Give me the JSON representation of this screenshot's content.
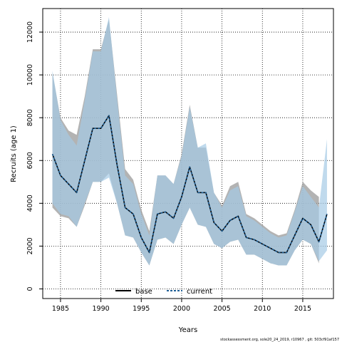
{
  "chart_data": {
    "type": "line",
    "xlabel": "Years",
    "ylabel": "Recruits (age 1)",
    "xlim": [
      1982.8,
      2018.8
    ],
    "ylim": [
      -450,
      13100
    ],
    "x_ticks": [
      1985,
      1990,
      1995,
      2000,
      2005,
      2010,
      2015
    ],
    "x_tick_labels": [
      "1985",
      "1990",
      "1995",
      "2000",
      "2005",
      "2010",
      "2015"
    ],
    "y_ticks": [
      0,
      2000,
      4000,
      6000,
      8000,
      10000,
      12000
    ],
    "y_tick_labels": [
      "0",
      "2000",
      "4000",
      "6000",
      "8000",
      "10000",
      "12000"
    ],
    "grid": true,
    "legend_position": "bottom-center",
    "years": [
      1984,
      1985,
      1986,
      1987,
      1988,
      1989,
      1990,
      1991,
      1992,
      1993,
      1994,
      1995,
      1996,
      1997,
      1998,
      1999,
      2000,
      2001,
      2002,
      2003,
      2004,
      2005,
      2006,
      2007,
      2008,
      2009,
      2010,
      2011,
      2012,
      2013,
      2014,
      2015,
      2016,
      2017,
      2018
    ],
    "series": [
      {
        "name": "base",
        "line_color": "#000000",
        "band_color": "#999999",
        "values": [
          6300,
          5300,
          4900,
          4500,
          6000,
          7500,
          7500,
          8100,
          5800,
          3800,
          3500,
          2400,
          1700,
          3500,
          3600,
          3300,
          4300,
          5700,
          4500,
          4500,
          3100,
          2700,
          3200,
          3400,
          2400,
          2300,
          2100,
          1900,
          1700,
          1700,
          2500,
          3300,
          3000,
          2200,
          3500
        ],
        "lower": [
          3800,
          3400,
          3300,
          2900,
          3900,
          5000,
          5000,
          5400,
          4000,
          2500,
          2400,
          1700,
          1100,
          2300,
          2400,
          2100,
          3000,
          3800,
          3000,
          2900,
          2100,
          1900,
          2200,
          2300,
          1600,
          1600,
          1400,
          1200,
          1100,
          1100,
          1800,
          2300,
          2100,
          1200,
          null
        ],
        "upper": [
          10100,
          8000,
          7400,
          7200,
          9000,
          11200,
          11200,
          12600,
          9100,
          5600,
          5100,
          3700,
          2700,
          5300,
          5300,
          4900,
          6300,
          8600,
          6600,
          6600,
          4500,
          3900,
          4800,
          5000,
          3500,
          3300,
          3000,
          2700,
          2500,
          2600,
          3700,
          5000,
          4600,
          4300,
          null
        ]
      },
      {
        "name": "current",
        "line_color": "#1f5f95",
        "band_color": "#a5cae6",
        "values": [
          6300,
          5300,
          4900,
          4500,
          6000,
          7500,
          7500,
          8100,
          5800,
          3800,
          3500,
          2400,
          1700,
          3500,
          3600,
          3300,
          4300,
          5700,
          4500,
          4500,
          3100,
          2700,
          3200,
          3400,
          2400,
          2300,
          2100,
          1900,
          1700,
          1700,
          2500,
          3300,
          3000,
          2200,
          3500
        ],
        "lower": [
          4000,
          3500,
          3400,
          2900,
          4000,
          5000,
          5000,
          5200,
          4000,
          2500,
          2400,
          1700,
          1100,
          2300,
          2400,
          2100,
          3000,
          3800,
          3000,
          2900,
          2100,
          1900,
          2200,
          2300,
          1600,
          1600,
          1400,
          1200,
          1100,
          1100,
          1800,
          2300,
          2100,
          1300,
          1800
        ],
        "upper": [
          10200,
          7900,
          7200,
          6700,
          8800,
          11100,
          11100,
          12700,
          8900,
          5300,
          4900,
          3500,
          2500,
          5300,
          5300,
          4900,
          6200,
          8500,
          6600,
          6800,
          4500,
          3800,
          4600,
          4800,
          3400,
          3200,
          2900,
          2600,
          2400,
          2500,
          3600,
          4800,
          4300,
          3800,
          7000
        ]
      }
    ],
    "footer": "stockassessment.org, sole20_24_2019, r10967 , git: 503cf91af157"
  }
}
